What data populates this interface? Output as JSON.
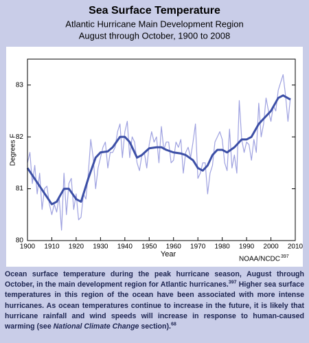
{
  "chart_data": {
    "type": "line",
    "title": "Sea Surface Temperature",
    "subtitle": [
      "Atlantic Hurricane Main Development Region",
      "August through October, 1900 to 2008"
    ],
    "xlabel": "Year",
    "ylabel": "Degrees F",
    "source": "NOAA/NCDC",
    "source_ref": "397",
    "xlim": [
      1900,
      2010
    ],
    "xticks": [
      1900,
      1910,
      1920,
      1930,
      1940,
      1950,
      1960,
      1970,
      1980,
      1990,
      2000,
      2010
    ],
    "ylim": [
      80,
      83.5
    ],
    "yticks": [
      80,
      81,
      82,
      83
    ],
    "series": [
      {
        "color": "#9ea1e0",
        "width": 1.2,
        "x": [
          1900,
          1901,
          1902,
          1903,
          1904,
          1905,
          1906,
          1907,
          1908,
          1909,
          1910,
          1911,
          1912,
          1913,
          1914,
          1915,
          1916,
          1917,
          1918,
          1919,
          1920,
          1921,
          1922,
          1923,
          1924,
          1925,
          1926,
          1927,
          1928,
          1929,
          1930,
          1931,
          1932,
          1933,
          1934,
          1935,
          1936,
          1937,
          1938,
          1939,
          1940,
          1941,
          1942,
          1943,
          1944,
          1945,
          1946,
          1947,
          1948,
          1949,
          1950,
          1951,
          1952,
          1953,
          1954,
          1955,
          1956,
          1957,
          1958,
          1959,
          1960,
          1961,
          1962,
          1963,
          1964,
          1965,
          1966,
          1967,
          1968,
          1969,
          1970,
          1971,
          1972,
          1973,
          1974,
          1975,
          1976,
          1977,
          1978,
          1979,
          1980,
          1981,
          1982,
          1983,
          1984,
          1985,
          1986,
          1987,
          1988,
          1989,
          1990,
          1991,
          1992,
          1993,
          1994,
          1995,
          1996,
          1997,
          1998,
          1999,
          2000,
          2001,
          2002,
          2003,
          2004,
          2005,
          2006,
          2007,
          2008
        ],
        "values": [
          81.5,
          81.7,
          81.1,
          81.45,
          80.9,
          81.3,
          80.6,
          81.0,
          81.05,
          80.7,
          80.5,
          80.7,
          80.55,
          80.85,
          80.2,
          81.3,
          80.5,
          81.1,
          81.2,
          80.6,
          80.9,
          80.4,
          80.45,
          80.9,
          80.8,
          81.3,
          81.95,
          81.6,
          81.0,
          81.4,
          81.6,
          81.8,
          81.9,
          81.4,
          81.7,
          81.7,
          81.8,
          82.1,
          82.25,
          81.6,
          82.1,
          82.3,
          81.6,
          82.0,
          81.9,
          81.5,
          81.35,
          81.65,
          81.7,
          81.4,
          81.85,
          82.1,
          81.9,
          82.0,
          81.5,
          82.2,
          81.75,
          81.9,
          81.9,
          81.5,
          81.55,
          81.9,
          81.8,
          81.95,
          81.3,
          81.7,
          81.8,
          81.6,
          81.9,
          82.25,
          81.2,
          81.3,
          81.5,
          81.5,
          80.9,
          81.3,
          81.45,
          81.9,
          82.0,
          82.1,
          81.95,
          81.5,
          81.35,
          82.15,
          81.4,
          81.65,
          81.3,
          82.7,
          81.95,
          81.7,
          81.9,
          81.85,
          81.55,
          81.95,
          81.7,
          82.65,
          82.0,
          82.25,
          82.75,
          82.5,
          82.3,
          82.6,
          82.5,
          82.9,
          83.05,
          83.2,
          82.8,
          82.3,
          82.75
        ]
      },
      {
        "color": "#3c4fa6",
        "width": 3,
        "x": [
          1900,
          1905,
          1910,
          1912,
          1915,
          1917,
          1920,
          1922,
          1925,
          1928,
          1930,
          1933,
          1935,
          1938,
          1940,
          1942,
          1945,
          1947,
          1950,
          1953,
          1955,
          1957,
          1960,
          1963,
          1965,
          1968,
          1970,
          1972,
          1974,
          1976,
          1978,
          1980,
          1982,
          1985,
          1988,
          1990,
          1992,
          1995,
          1998,
          2000,
          2003,
          2005,
          2008
        ],
        "values": [
          81.4,
          81.05,
          80.7,
          80.75,
          81.0,
          81.0,
          80.8,
          80.75,
          81.2,
          81.6,
          81.7,
          81.72,
          81.8,
          82.0,
          82.0,
          81.9,
          81.6,
          81.65,
          81.78,
          81.8,
          81.8,
          81.75,
          81.7,
          81.68,
          81.65,
          81.55,
          81.4,
          81.35,
          81.45,
          81.65,
          81.75,
          81.75,
          81.7,
          81.8,
          81.95,
          81.95,
          82.0,
          82.25,
          82.4,
          82.5,
          82.75,
          82.8,
          82.72
        ]
      }
    ]
  },
  "caption": {
    "part1": "Ocean surface temperature during the peak hurricane season, August through October, in the main development region for Atlantic hurricanes.",
    "ref1": "397",
    "part2": " Higher sea surface temperatures in this region of the ocean have been associated with more intense hurricanes. As ocean temperatures continue to increase in the future, it is likely that hurricane rainfall and wind speeds will increase in response to human-caused warming (see ",
    "italic": "National Climate Change",
    "part3": " section).",
    "ref2": "68"
  }
}
